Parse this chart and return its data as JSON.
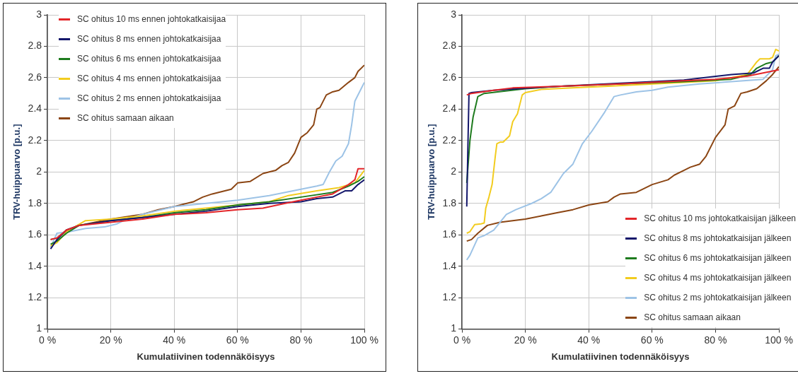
{
  "chart_data": [
    {
      "type": "line",
      "xlabel": "Kumulatiivinen todennäköisyys",
      "ylabel": "TRV-huippuarvo [p.u.]",
      "xlim": [
        0,
        100
      ],
      "xticks": [
        {
          "value": 0,
          "label": "0 %"
        },
        {
          "value": 20,
          "label": "20 %"
        },
        {
          "value": 40,
          "label": "40 %"
        },
        {
          "value": 60,
          "label": "60 %"
        },
        {
          "value": 80,
          "label": "80 %"
        },
        {
          "value": 100,
          "label": "100 %"
        }
      ],
      "ylim": [
        1,
        3
      ],
      "yticks": [
        1,
        1.2,
        1.4,
        1.6,
        1.8,
        2,
        2.2,
        2.4,
        2.6,
        2.8,
        3
      ],
      "grid": true,
      "legend": "top left",
      "marker": "none",
      "line_style": "solid",
      "series": [
        {
          "name": "SC ohitus 10 ms ennen johtokatkaisijaa",
          "color": "#e3262a",
          "x": [
            1,
            3,
            6,
            10,
            20,
            30,
            40,
            50,
            60,
            68,
            75,
            80,
            85,
            90,
            95,
            97,
            98,
            100
          ],
          "values": [
            1.57,
            1.58,
            1.63,
            1.66,
            1.68,
            1.7,
            1.73,
            1.74,
            1.76,
            1.77,
            1.8,
            1.82,
            1.84,
            1.86,
            1.92,
            1.95,
            2.02,
            2.02
          ]
        },
        {
          "name": "SC ohitus 8 ms ennen johtokatkaisijaa",
          "color": "#14176b",
          "x": [
            1,
            3,
            6,
            10,
            20,
            30,
            40,
            50,
            60,
            70,
            80,
            85,
            90,
            92,
            94,
            96,
            98,
            100
          ],
          "values": [
            1.51,
            1.57,
            1.63,
            1.66,
            1.69,
            1.71,
            1.73,
            1.75,
            1.78,
            1.8,
            1.81,
            1.83,
            1.84,
            1.86,
            1.88,
            1.88,
            1.92,
            1.95
          ]
        },
        {
          "name": "SC ohitus 6 ms ennen johtokatkaisijaa",
          "color": "#1e7b1e",
          "x": [
            1,
            3,
            6,
            10,
            20,
            30,
            40,
            50,
            60,
            70,
            80,
            90,
            95,
            98,
            100
          ],
          "values": [
            1.54,
            1.56,
            1.61,
            1.66,
            1.69,
            1.71,
            1.74,
            1.76,
            1.79,
            1.81,
            1.84,
            1.87,
            1.91,
            1.94,
            1.97
          ]
        },
        {
          "name": "SC ohitus 4 ms ennen johtokatkaisijaa",
          "color": "#f2cc1f",
          "x": [
            1,
            3,
            6,
            12,
            20,
            30,
            40,
            50,
            60,
            70,
            76,
            85,
            92,
            97,
            100
          ],
          "values": [
            1.53,
            1.55,
            1.62,
            1.69,
            1.7,
            1.72,
            1.75,
            1.77,
            1.79,
            1.81,
            1.85,
            1.88,
            1.9,
            1.93,
            2.01
          ]
        },
        {
          "name": "SC ohitus 2 ms ennen johtokatkaisijaa",
          "color": "#9dc3e6",
          "x": [
            1,
            3,
            7,
            12,
            18,
            22,
            25,
            30,
            40,
            50,
            60,
            70,
            75,
            80,
            85,
            87,
            89,
            91,
            93,
            95,
            96,
            97,
            99,
            100
          ],
          "values": [
            1.52,
            1.61,
            1.62,
            1.64,
            1.65,
            1.67,
            1.7,
            1.73,
            1.78,
            1.8,
            1.82,
            1.85,
            1.87,
            1.89,
            1.91,
            1.92,
            2,
            2.07,
            2.1,
            2.18,
            2.3,
            2.45,
            2.53,
            2.57
          ]
        },
        {
          "name": "SC ohitus samaan aikaan",
          "color": "#8b4513",
          "x": [
            1,
            3,
            6,
            10,
            20,
            30,
            35,
            40,
            46,
            49,
            52,
            58,
            60,
            64,
            68,
            72,
            74,
            76,
            78,
            80,
            82,
            84,
            85,
            86,
            88,
            90,
            92,
            95,
            97,
            98,
            100
          ],
          "values": [
            1.57,
            1.58,
            1.63,
            1.66,
            1.7,
            1.73,
            1.76,
            1.78,
            1.81,
            1.84,
            1.86,
            1.89,
            1.93,
            1.94,
            1.99,
            2.01,
            2.04,
            2.06,
            2.12,
            2.22,
            2.25,
            2.3,
            2.4,
            2.41,
            2.49,
            2.51,
            2.52,
            2.57,
            2.6,
            2.64,
            2.68
          ]
        }
      ]
    },
    {
      "type": "line",
      "xlabel": "Kumulatiivinen todennäköisyys",
      "ylabel": "TRV-huippuarvo [p.u.]",
      "xlim": [
        0,
        100
      ],
      "xticks": [
        {
          "value": 0,
          "label": "0 %"
        },
        {
          "value": 20,
          "label": "20 %"
        },
        {
          "value": 40,
          "label": "40 %"
        },
        {
          "value": 60,
          "label": "60 %"
        },
        {
          "value": 80,
          "label": "80 %"
        },
        {
          "value": 100,
          "label": "100 %"
        }
      ],
      "ylim": [
        1,
        3
      ],
      "yticks": [
        1,
        1.2,
        1.4,
        1.6,
        1.8,
        2,
        2.2,
        2.4,
        2.6,
        2.8,
        3
      ],
      "grid": true,
      "legend": "bottom right",
      "marker": "none",
      "line_style": "solid",
      "series": [
        {
          "name": "SC ohitus 10 ms johtokatkaisijan jälkeen",
          "color": "#e3262a",
          "x": [
            1.5,
            3,
            10,
            16,
            30,
            50,
            70,
            80,
            90,
            95,
            100
          ],
          "values": [
            2.49,
            2.5,
            2.52,
            2.535,
            2.545,
            2.56,
            2.58,
            2.59,
            2.61,
            2.63,
            2.65
          ]
        },
        {
          "name": "SC ohitus 8 ms johtokatkaisijan jälkeen",
          "color": "#14176b",
          "x": [
            1.5,
            1.8,
            2.2,
            3,
            10,
            30,
            50,
            70,
            85,
            92,
            95,
            97,
            98,
            100
          ],
          "values": [
            1.78,
            2.1,
            2.5,
            2.505,
            2.52,
            2.545,
            2.565,
            2.585,
            2.62,
            2.63,
            2.66,
            2.66,
            2.7,
            2.74
          ]
        },
        {
          "name": "SC ohitus 6 ms johtokatkaisijan jälkeen",
          "color": "#1e7b1e",
          "x": [
            1.5,
            2.5,
            3.5,
            5,
            7,
            20,
            30,
            50,
            70,
            85,
            91,
            93,
            96,
            98,
            100
          ],
          "values": [
            1.93,
            2.2,
            2.35,
            2.48,
            2.5,
            2.53,
            2.545,
            2.56,
            2.575,
            2.59,
            2.62,
            2.66,
            2.69,
            2.7,
            2.74
          ]
        },
        {
          "name": "SC ohitus 4 ms johtokatkaisijan jälkeen",
          "color": "#f2cc1f",
          "x": [
            1.5,
            2.5,
            4,
            6,
            7,
            7.5,
            8.5,
            9.5,
            10.5,
            11,
            12,
            13,
            15,
            16,
            17.5,
            19,
            20,
            25,
            35,
            45,
            65,
            80,
            90,
            93,
            94,
            97,
            98,
            99,
            100
          ],
          "values": [
            1.61,
            1.62,
            1.665,
            1.67,
            1.675,
            1.77,
            1.84,
            1.92,
            2.1,
            2.18,
            2.19,
            2.19,
            2.23,
            2.32,
            2.37,
            2.49,
            2.505,
            2.525,
            2.535,
            2.545,
            2.565,
            2.58,
            2.62,
            2.7,
            2.72,
            2.72,
            2.73,
            2.78,
            2.77
          ]
        },
        {
          "name": "SC ohitus 2 ms johtokatkaisijan jälkeen",
          "color": "#9dc3e6",
          "x": [
            1.5,
            2.5,
            5,
            7,
            10,
            14,
            17,
            22,
            25,
            28,
            30,
            32,
            35,
            38,
            41,
            45,
            48,
            50,
            55,
            60,
            65,
            75,
            85,
            95,
            98,
            99,
            100
          ],
          "values": [
            1.44,
            1.47,
            1.58,
            1.595,
            1.63,
            1.73,
            1.76,
            1.8,
            1.83,
            1.87,
            1.93,
            1.99,
            2.05,
            2.18,
            2.26,
            2.38,
            2.48,
            2.49,
            2.51,
            2.52,
            2.54,
            2.56,
            2.575,
            2.59,
            2.65,
            2.74,
            2.75
          ]
        },
        {
          "name": "SC ohitus samaan aikaan",
          "color": "#8b4513",
          "x": [
            1.5,
            3,
            5,
            8,
            12,
            20,
            25,
            30,
            35,
            40,
            46,
            48,
            50,
            55,
            60,
            65,
            67,
            70,
            72,
            75,
            77,
            80,
            83,
            84,
            86,
            88,
            90,
            93,
            96,
            98,
            100
          ],
          "values": [
            1.56,
            1.57,
            1.61,
            1.66,
            1.68,
            1.7,
            1.72,
            1.74,
            1.76,
            1.79,
            1.81,
            1.84,
            1.86,
            1.87,
            1.92,
            1.95,
            1.98,
            2.01,
            2.03,
            2.05,
            2.1,
            2.22,
            2.3,
            2.4,
            2.42,
            2.5,
            2.51,
            2.53,
            2.58,
            2.62,
            2.67
          ]
        }
      ]
    }
  ]
}
